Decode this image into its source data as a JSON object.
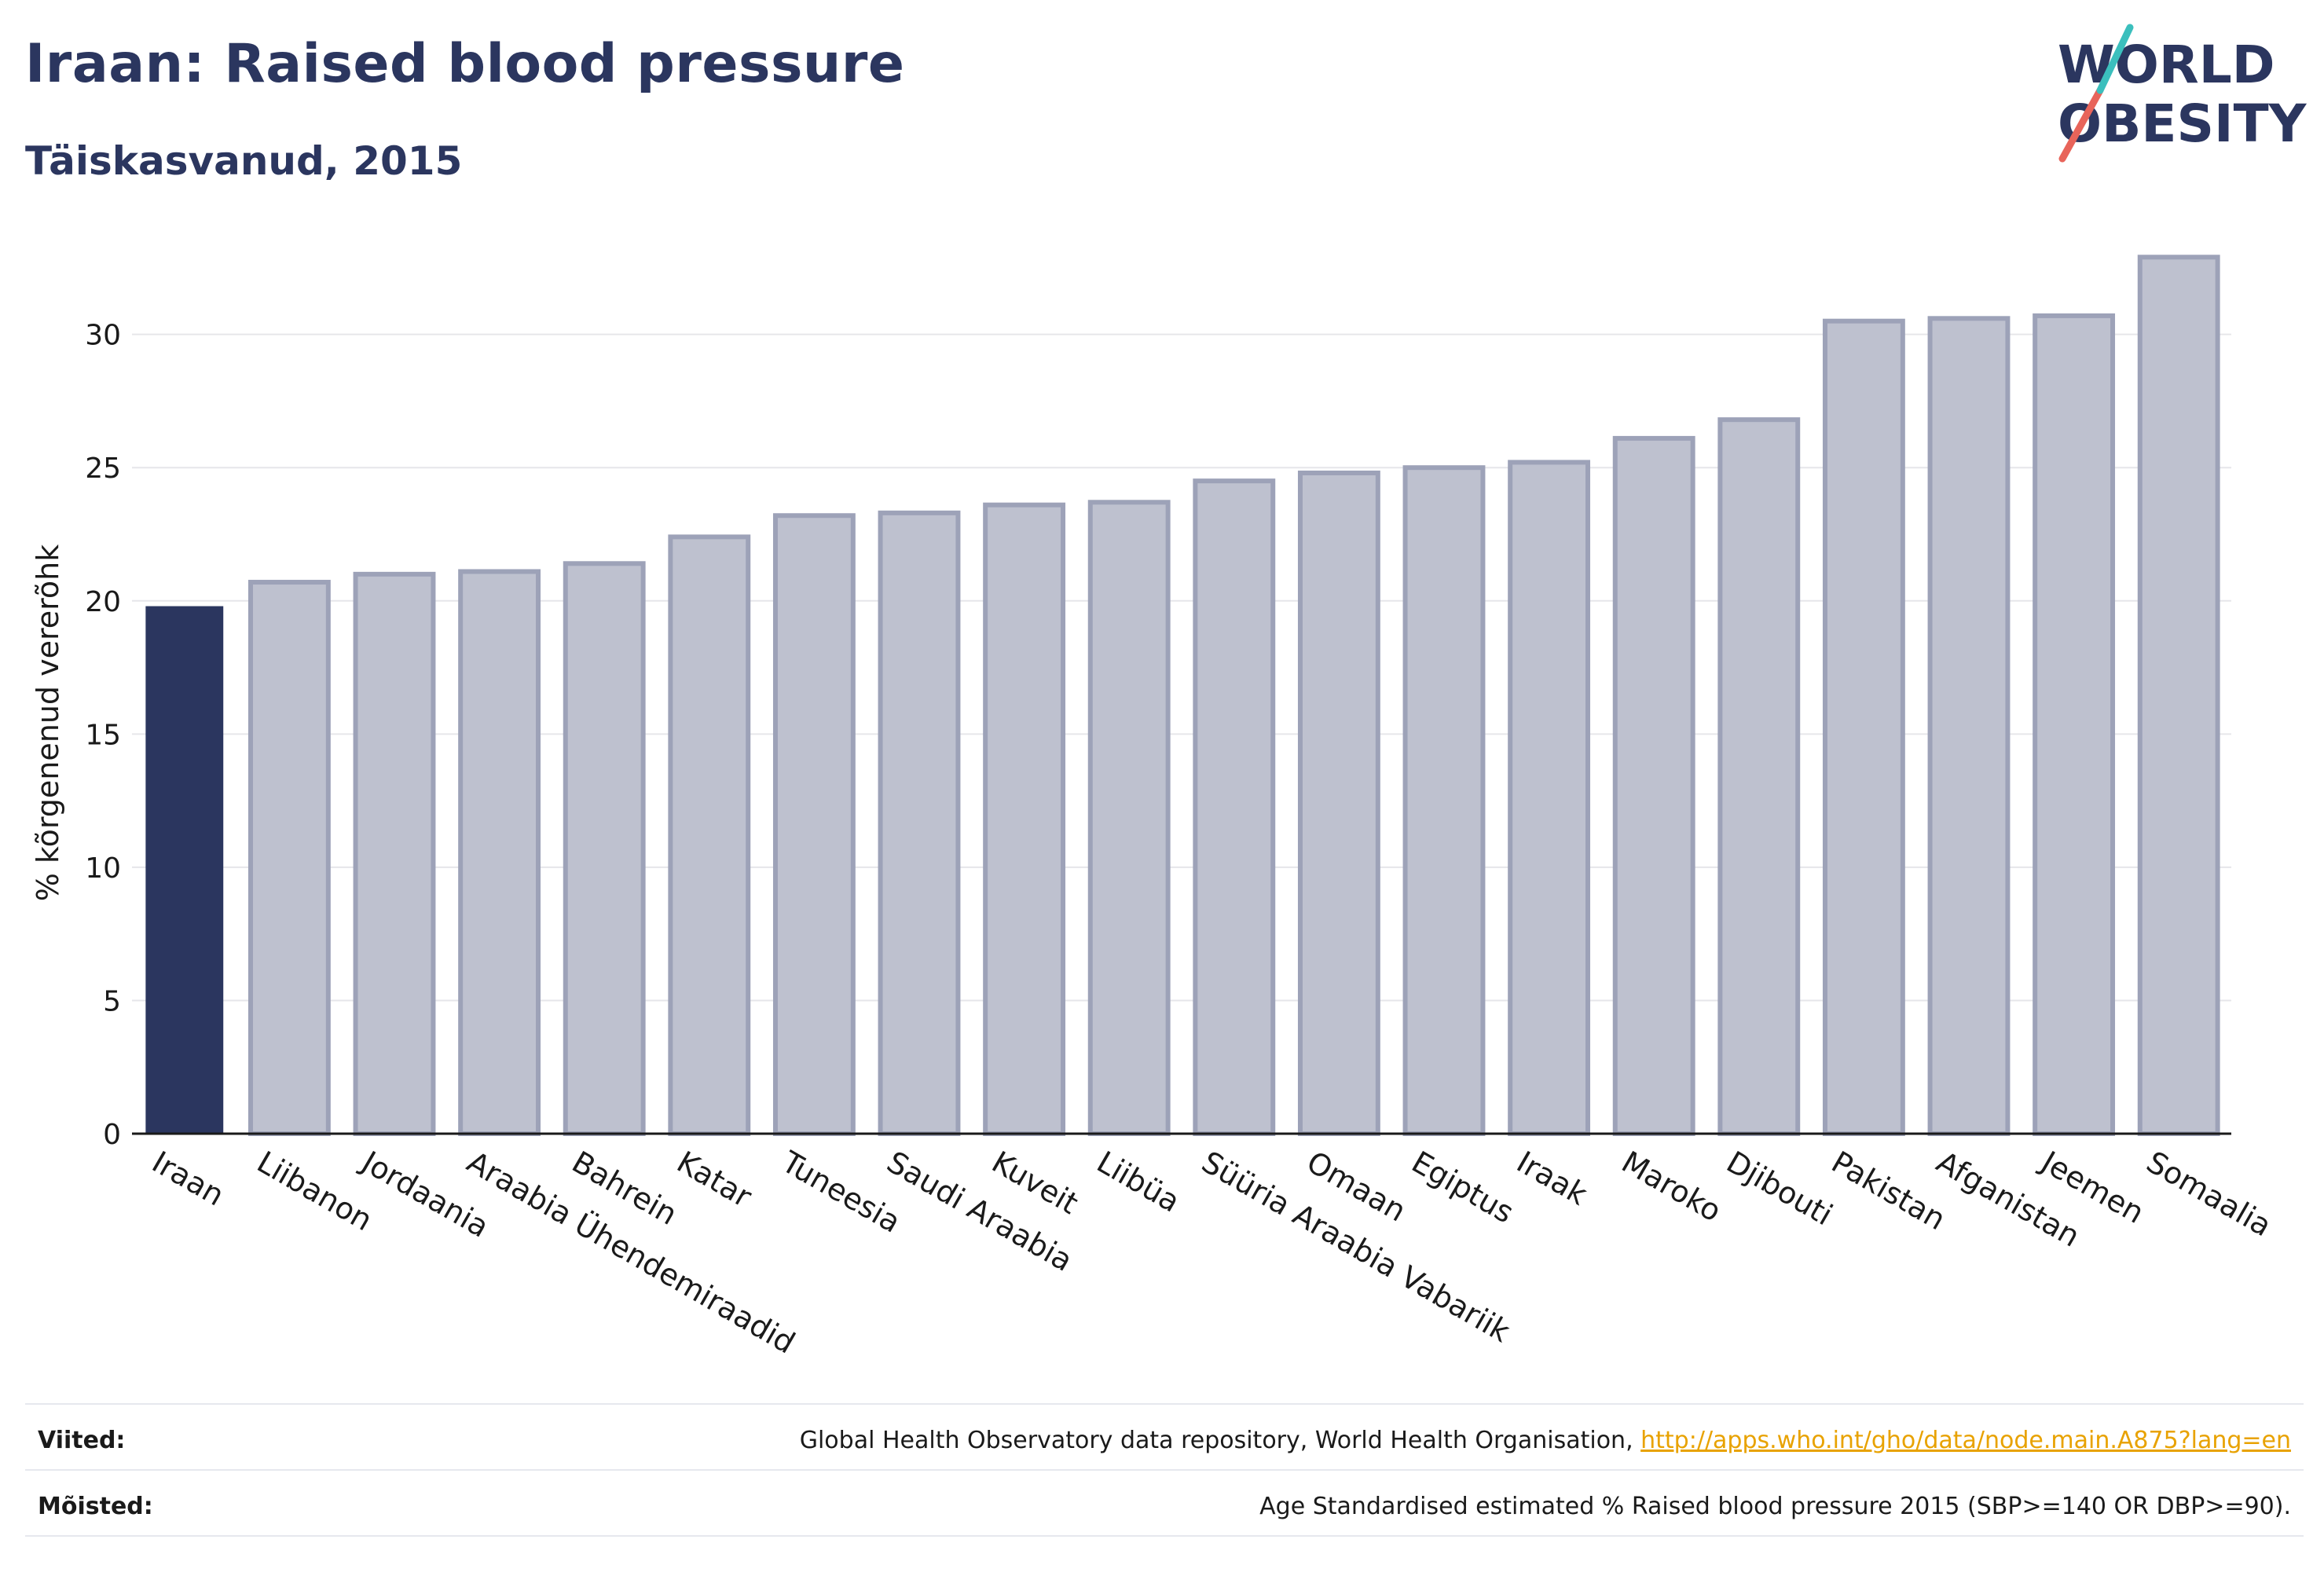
{
  "header": {
    "title": "Iraan: Raised blood pressure",
    "subtitle": "Täiskasvanud, 2015"
  },
  "logo": {
    "line1": "WORLD",
    "line2": "OBESITY",
    "accent_teal": "#3bbfbd",
    "accent_red": "#e8645a",
    "text_color": "#2b365f"
  },
  "colors": {
    "highlight_bar": "#2b365f",
    "other_bar_fill": "#bec1cf",
    "other_bar_stroke": "#9da2b8",
    "grid": "#e6e6ea",
    "axis_text": "#1a1a1a"
  },
  "chart_data": {
    "type": "bar",
    "title": "Iraan: Raised blood pressure",
    "subtitle": "Täiskasvanud, 2015",
    "xlabel": "",
    "ylabel": "% kõrgenenud vererõhk",
    "ylim": [
      0,
      34
    ],
    "yticks": [
      0,
      5,
      10,
      15,
      20,
      25,
      30
    ],
    "grid": true,
    "highlight": "Iraan",
    "categories": [
      "Iraan",
      "Liibanon",
      "Jordaania",
      "Araabia Ühendemiraadid",
      "Bahrein",
      "Katar",
      "Tuneesia",
      "Saudi Araabia",
      "Kuveit",
      "Liibüa",
      "Süüria Araabia Vabariik",
      "Omaan",
      "Egiptus",
      "Iraak",
      "Maroko",
      "Djibouti",
      "Pakistan",
      "Afganistan",
      "Jeemen",
      "Somaalia"
    ],
    "values": [
      19.8,
      20.7,
      21.0,
      21.1,
      21.4,
      22.4,
      23.2,
      23.3,
      23.6,
      23.7,
      24.5,
      24.8,
      25.0,
      25.2,
      26.1,
      26.8,
      30.5,
      30.6,
      30.7,
      32.9
    ]
  },
  "footer": {
    "sources_label": "Viited:",
    "sources_text": "Global Health Observatory data repository, World Health Organisation, ",
    "sources_link": "http://apps.who.int/gho/data/node.main.A875?lang=en",
    "definitions_label": "Mõisted:",
    "definitions_text": "Age Standardised estimated % Raised blood pressure 2015 (SBP>=140 OR DBP>=90)."
  }
}
